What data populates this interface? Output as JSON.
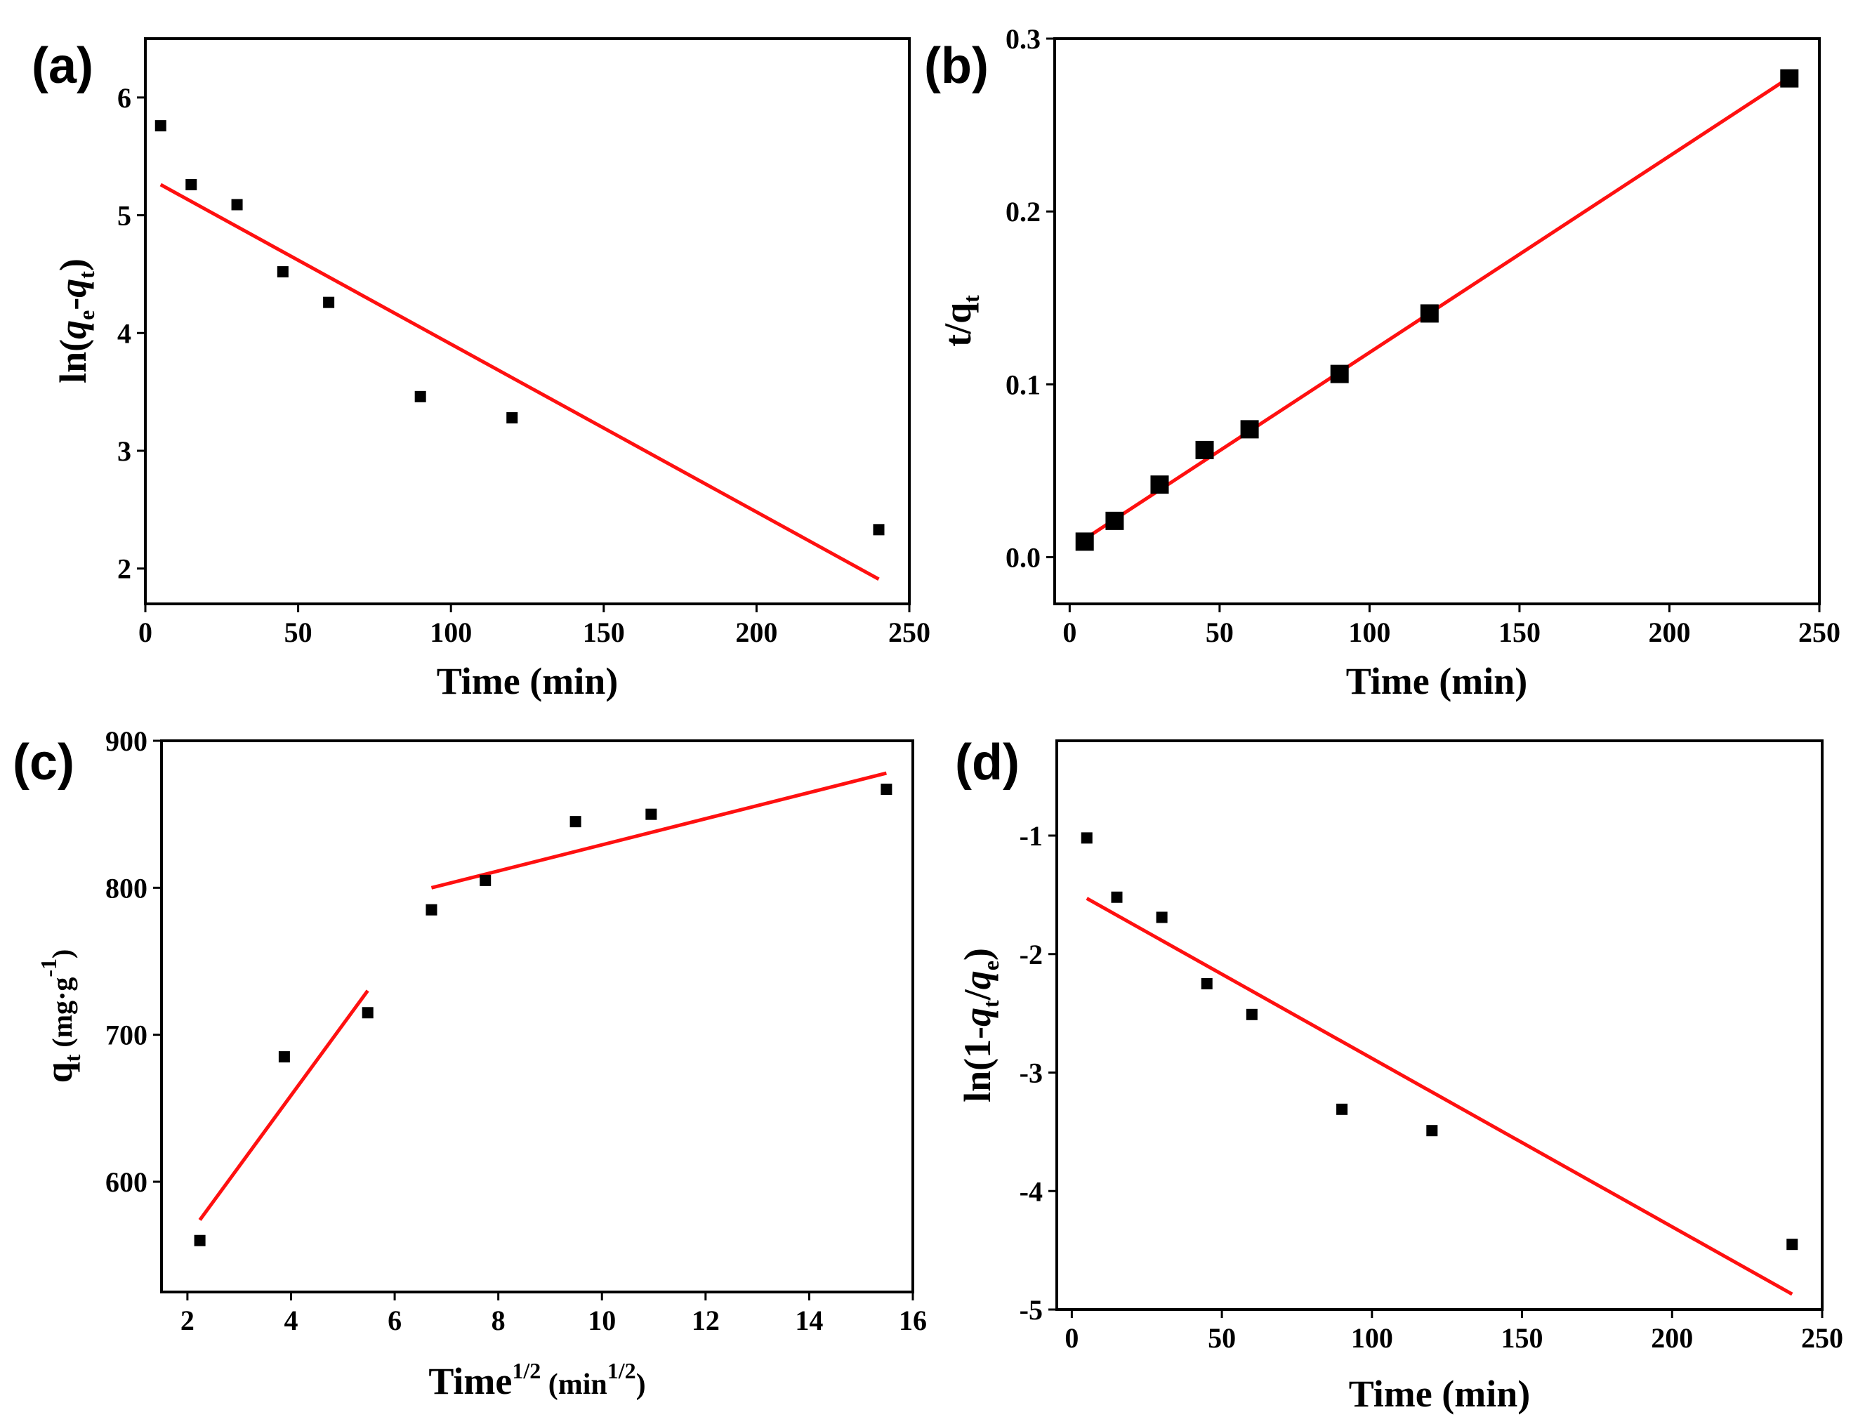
{
  "chart_data": [
    {
      "id": "a",
      "type": "scatter",
      "panel_label": "(a)",
      "xlabel": "Time (min)",
      "ylabel_parts": [
        "ln(",
        "q",
        "e",
        "-",
        "q",
        "t",
        ")"
      ],
      "xlim": [
        0,
        250
      ],
      "ylim": [
        1.7,
        6.5
      ],
      "xticks": [
        0,
        50,
        100,
        150,
        200,
        250
      ],
      "yticks": [
        2,
        3,
        4,
        5,
        6
      ],
      "ytick_decimals": 0,
      "marker_size": "small",
      "points": [
        [
          5,
          5.76
        ],
        [
          15,
          5.26
        ],
        [
          30,
          5.09
        ],
        [
          45,
          4.52
        ],
        [
          60,
          4.26
        ],
        [
          90,
          3.46
        ],
        [
          120,
          3.28
        ],
        [
          240,
          2.33
        ]
      ],
      "fits": [
        [
          [
            5,
            5.26
          ],
          [
            240,
            1.91
          ]
        ]
      ],
      "fit_color": "#ff1010"
    },
    {
      "id": "b",
      "type": "scatter",
      "panel_label": "(b)",
      "xlabel": "Time (min)",
      "ylabel_parts": [
        "t/q",
        "t"
      ],
      "xlim": [
        -5,
        250
      ],
      "ylim": [
        -0.027,
        0.3
      ],
      "xticks": [
        0,
        50,
        100,
        150,
        200,
        250
      ],
      "yticks": [
        0.0,
        0.1,
        0.2,
        0.3
      ],
      "ytick_decimals": 1,
      "marker_size": "large",
      "points": [
        [
          5,
          0.009
        ],
        [
          15,
          0.021
        ],
        [
          30,
          0.042
        ],
        [
          45,
          0.062
        ],
        [
          60,
          0.074
        ],
        [
          90,
          0.106
        ],
        [
          120,
          0.141
        ],
        [
          240,
          0.277
        ]
      ],
      "fits": [
        [
          [
            5,
            0.0105
          ],
          [
            240,
            0.2775
          ]
        ]
      ],
      "fit_color": "#ff1010"
    },
    {
      "id": "c",
      "type": "scatter",
      "panel_label": "(c)",
      "xlabel_parts": [
        "Time",
        "1/2",
        " (min",
        "1/2",
        ")"
      ],
      "ylabel_parts": [
        "q",
        "t",
        " (mg·g",
        "-1",
        ")"
      ],
      "xlim": [
        1.5,
        16
      ],
      "ylim": [
        525,
        900
      ],
      "xticks": [
        2,
        4,
        6,
        8,
        10,
        12,
        14,
        16
      ],
      "yticks": [
        600,
        700,
        800,
        900
      ],
      "ytick_decimals": 0,
      "marker_size": "small",
      "points": [
        [
          2.24,
          560
        ],
        [
          3.87,
          685
        ],
        [
          5.48,
          715
        ],
        [
          6.71,
          785
        ],
        [
          7.75,
          805
        ],
        [
          9.49,
          845
        ],
        [
          10.95,
          850
        ],
        [
          15.49,
          867
        ]
      ],
      "fits": [
        [
          [
            2.24,
            574
          ],
          [
            5.48,
            730
          ]
        ],
        [
          [
            6.71,
            800
          ],
          [
            15.49,
            878
          ]
        ]
      ],
      "fit_color": "#ff1010"
    },
    {
      "id": "d",
      "type": "scatter",
      "panel_label": "(d)",
      "xlabel": "Time (min)",
      "ylabel_parts": [
        "ln(1-",
        "q",
        "t",
        "/",
        "q",
        "e",
        ")"
      ],
      "xlim": [
        -5,
        250
      ],
      "ylim": [
        -5,
        -0.2
      ],
      "xticks": [
        0,
        50,
        100,
        150,
        200,
        250
      ],
      "yticks": [
        -5,
        -4,
        -3,
        -2,
        -1
      ],
      "ytick_decimals": 0,
      "marker_size": "small",
      "points": [
        [
          5,
          -1.02
        ],
        [
          15,
          -1.52
        ],
        [
          30,
          -1.69
        ],
        [
          45,
          -2.25
        ],
        [
          60,
          -2.51
        ],
        [
          90,
          -3.31
        ],
        [
          120,
          -3.49
        ],
        [
          240,
          -4.45
        ]
      ],
      "fits": [
        [
          [
            5,
            -1.53
          ],
          [
            240,
            -4.87
          ]
        ]
      ],
      "fit_color": "#ff1010"
    }
  ]
}
